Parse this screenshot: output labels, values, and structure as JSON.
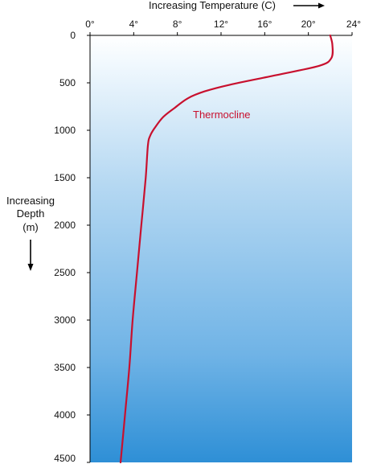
{
  "chart_data": {
    "type": "line",
    "title": "Increasing Temperature (C)",
    "xlabel": "Increasing Temperature (C)",
    "ylabel": [
      "Increasing",
      "Depth",
      "(m)"
    ],
    "xlim": [
      0,
      24
    ],
    "ylim": [
      0,
      4500
    ],
    "y_inverted": true,
    "x_ticks": [
      "0°",
      "4°",
      "8°",
      "12°",
      "16°",
      "20°",
      "24°"
    ],
    "y_ticks": [
      "0",
      "500",
      "1000",
      "1500",
      "2000",
      "2500",
      "3000",
      "3500",
      "4000",
      "4500"
    ],
    "x_axis_position": "top",
    "grid": false,
    "series": [
      {
        "color": "#c8102e",
        "points": [
          [
            22.0,
            0
          ],
          [
            22.2,
            100
          ],
          [
            22.1,
            240
          ],
          [
            21.0,
            320
          ],
          [
            17.0,
            420
          ],
          [
            12.8,
            520
          ],
          [
            10.5,
            590
          ],
          [
            9.0,
            660
          ],
          [
            7.8,
            760
          ],
          [
            6.7,
            860
          ],
          [
            5.9,
            980
          ],
          [
            5.5,
            1060
          ],
          [
            5.3,
            1160
          ],
          [
            5.1,
            1500
          ],
          [
            4.7,
            2000
          ],
          [
            4.3,
            2500
          ],
          [
            3.9,
            3000
          ],
          [
            3.6,
            3500
          ],
          [
            3.2,
            4000
          ],
          [
            2.8,
            4500
          ]
        ]
      }
    ],
    "annotations": [
      {
        "text": "Thermocline",
        "color": "#c8102e"
      }
    ],
    "colors": {
      "background_top": "#ffffff",
      "background_bottom": "#2e8fd6",
      "line": "#c8102e",
      "axis": "#000000"
    }
  }
}
